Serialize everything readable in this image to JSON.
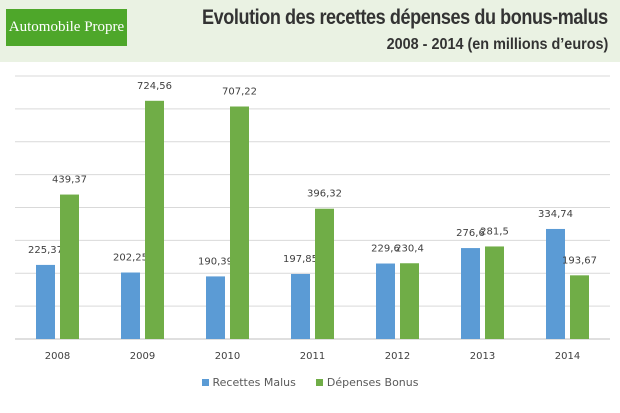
{
  "logo": "Automobile Propre",
  "chart_data": {
    "type": "bar",
    "title": "Evolution des recettes dépenses du bonus-malus",
    "subtitle": "2008 - 2014 (en millions d’euros)",
    "categories": [
      "2008",
      "2009",
      "2010",
      "2011",
      "2012",
      "2013",
      "2014"
    ],
    "series": [
      {
        "name": "Recettes Malus",
        "color": "#5b9bd5",
        "values": [
          225.37,
          202.25,
          190.39,
          197.85,
          229.6,
          276.6,
          334.74
        ],
        "labels": [
          "225,37",
          "202,25",
          "190,39",
          "197,85",
          "229,6",
          "276,6",
          "334,74"
        ]
      },
      {
        "name": "Dépenses Bonus",
        "color": "#70ad47",
        "values": [
          439.37,
          724.56,
          707.22,
          396.32,
          230.4,
          281.5,
          193.67
        ],
        "labels": [
          "439,37",
          "724,56",
          "707,22",
          "396,32",
          "230,4",
          "281,5",
          "193,67"
        ]
      }
    ],
    "ylim": [
      0,
      800
    ],
    "ytick_step": 100,
    "grid": true,
    "legend": "bottom"
  }
}
